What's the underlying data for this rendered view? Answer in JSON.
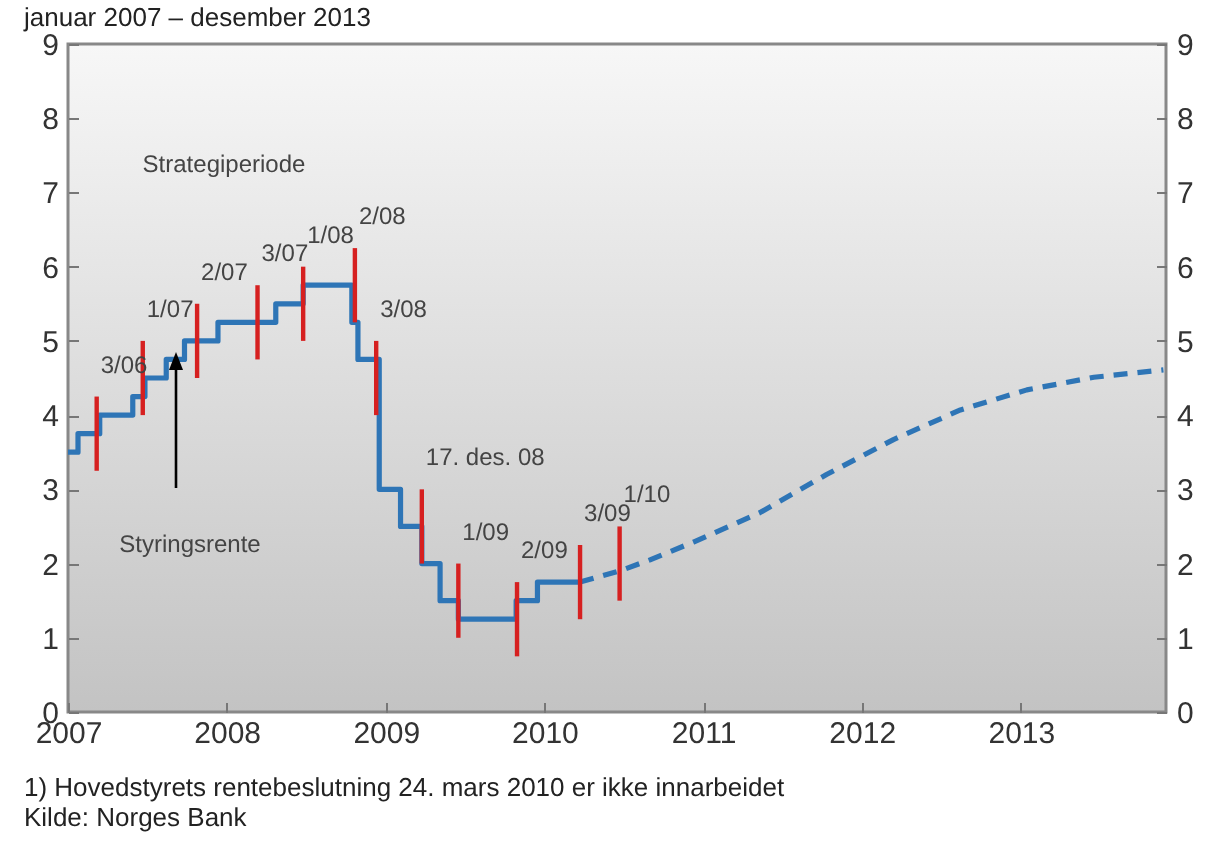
{
  "chart_data": {
    "type": "step",
    "title": "januar 2007 – desember 2013",
    "xlim": [
      "2007-01-01",
      "2013-12-01"
    ],
    "xticks": [
      "2007",
      "2008",
      "2009",
      "2010",
      "2011",
      "2012",
      "2013"
    ],
    "ylim": [
      0,
      9
    ],
    "yticks": [
      0,
      1,
      2,
      3,
      4,
      5,
      6,
      7,
      8,
      9
    ],
    "y2lim": [
      0,
      9
    ],
    "y2ticks": [
      0,
      1,
      2,
      3,
      4,
      5,
      6,
      7,
      8,
      9
    ],
    "grid": false,
    "series": [
      {
        "color": "#2e75b6",
        "x": [
          "2007-01-01",
          "2007-01-24",
          "2007-03-15",
          "2007-05-30",
          "2007-06-27",
          "2007-08-15",
          "2007-09-26",
          "2007-12-12",
          "2008-04-23",
          "2008-06-25",
          "2008-10-15",
          "2008-10-29",
          "2008-12-17",
          "2009-02-04",
          "2009-03-25",
          "2009-05-06",
          "2009-06-17",
          "2009-10-28",
          "2009-12-16",
          "2010-03-24"
        ],
        "values": [
          3.5,
          3.75,
          4.0,
          4.25,
          4.5,
          4.75,
          5.0,
          5.25,
          5.5,
          5.75,
          5.25,
          4.75,
          3.0,
          2.5,
          2.0,
          1.5,
          1.25,
          1.5,
          1.75,
          1.75
        ]
      },
      {
        "type": "line",
        "line_style": "dashed",
        "color": "#2e75b6",
        "x": [
          "2010-03-24",
          "2010-06-23",
          "2010-09-01",
          "2010-12-10",
          "2011-05-10",
          "2011-10-12",
          "2012-03-14",
          "2012-08-15",
          "2013-01-15",
          "2013-06-18",
          "2013-11-25"
        ],
        "values": [
          1.75,
          1.9,
          2.05,
          2.29,
          2.68,
          3.2,
          3.67,
          4.07,
          4.34,
          4.51,
          4.61
        ]
      },
      {
        "type": "bar",
        "color": "#d62020",
        "x": [
          "2007-03-08",
          "2007-06-22",
          "2007-10-25",
          "2008-03-12",
          "2008-06-25",
          "2008-10-22",
          "2008-12-10",
          "2009-03-25",
          "2009-06-17",
          "2009-10-30",
          "2010-03-24",
          "2010-06-23"
        ],
        "base": [
          3.25,
          4.0,
          4.5,
          4.75,
          5.0,
          5.25,
          4.0,
          2.0,
          1.0,
          0.75,
          1.25,
          1.5
        ],
        "values": [
          1.0,
          1.0,
          1.0,
          1.0,
          1.0,
          1.0,
          1.0,
          1.0,
          1.0,
          1.0,
          1.0,
          1.0
        ]
      }
    ],
    "annotations": [
      {
        "text": "3/06",
        "x": "2007-03-08",
        "y": 4.25
      },
      {
        "text": "1/07",
        "x": "2007-06-22",
        "y": 5.0
      },
      {
        "text": "2/07",
        "x": "2007-10-25",
        "y": 5.5
      },
      {
        "text": "3/07",
        "x": "2008-03-12",
        "y": 5.75
      },
      {
        "text": "1/08",
        "x": "2008-06-25",
        "y": 6.0
      },
      {
        "text": "2/08",
        "x": "2008-10-22",
        "y": 6.25
      },
      {
        "text": "3/08",
        "x": "2008-12-10",
        "y": 5.0
      },
      {
        "text": "17. des. 08",
        "x": "2009-03-25",
        "y": 3.0
      },
      {
        "text": "1/09",
        "x": "2009-06-17",
        "y": 2.0
      },
      {
        "text": "2/09",
        "x": "2009-10-30",
        "y": 1.75
      },
      {
        "text": "3/09",
        "x": "2010-03-24",
        "y": 2.25
      },
      {
        "text": "1/10",
        "x": "2010-06-23",
        "y": 2.5
      },
      "Strategiperiode",
      "Styringsrente",
      "1) Hovedstyrets rentebeslutning 24. mars 2010 er ikke innarbeidet",
      "Kilde: Norges Bank"
    ]
  }
}
